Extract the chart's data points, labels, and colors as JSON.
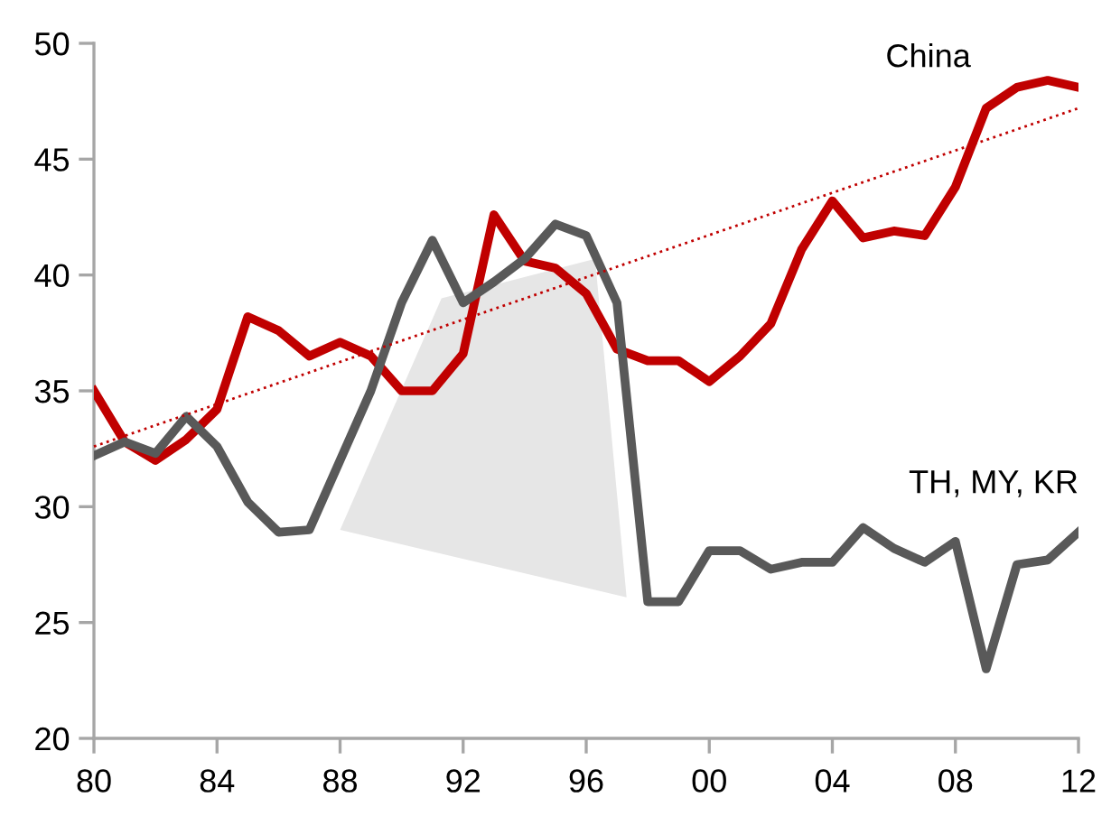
{
  "chart_data": {
    "type": "line",
    "x": [
      1980,
      1981,
      1982,
      1983,
      1984,
      1985,
      1986,
      1987,
      1988,
      1989,
      1990,
      1991,
      1992,
      1993,
      1994,
      1995,
      1996,
      1997,
      1998,
      1999,
      2000,
      2001,
      2002,
      2003,
      2004,
      2005,
      2006,
      2007,
      2008,
      2009,
      2010,
      2011,
      2012
    ],
    "series": [
      {
        "name": "China",
        "color": "#c00000",
        "values": [
          35.0,
          32.8,
          32.0,
          32.9,
          34.2,
          38.2,
          37.6,
          36.5,
          37.1,
          36.5,
          35.0,
          35.0,
          36.6,
          42.6,
          40.6,
          40.3,
          39.2,
          36.8,
          36.3,
          36.3,
          35.4,
          36.5,
          37.9,
          41.1,
          43.2,
          41.6,
          41.9,
          41.7,
          43.8,
          47.2,
          48.1,
          48.4,
          48.1
        ]
      },
      {
        "name": "TH, MY, KR",
        "color": "#595959",
        "values": [
          32.2,
          32.8,
          32.3,
          33.9,
          32.6,
          30.2,
          28.9,
          29.0,
          32.0,
          35.0,
          38.8,
          41.5,
          38.8,
          39.7,
          40.7,
          42.2,
          41.7,
          38.8,
          25.9,
          25.9,
          28.1,
          28.1,
          27.3,
          27.6,
          27.6,
          29.1,
          28.2,
          27.6,
          28.5,
          23.0,
          27.5,
          27.7,
          28.9
        ]
      },
      {
        "type": "line",
        "color": "#c00000",
        "line_style": "dotted",
        "x": [
          1980,
          2012
        ],
        "values": [
          32.6,
          47.2
        ]
      }
    ],
    "xlim": [
      1980,
      2012
    ],
    "xticks": [
      {
        "value": 1980,
        "label": "80"
      },
      {
        "value": 1984,
        "label": "84"
      },
      {
        "value": 1988,
        "label": "88"
      },
      {
        "value": 1992,
        "label": "92"
      },
      {
        "value": 1996,
        "label": "96"
      },
      {
        "value": 2000,
        "label": "00"
      },
      {
        "value": 2004,
        "label": "04"
      },
      {
        "value": 2008,
        "label": "08"
      },
      {
        "value": 2012,
        "label": "12"
      }
    ],
    "ylim": [
      20,
      50
    ],
    "yticks": [
      20,
      25,
      30,
      35,
      40,
      45,
      50
    ],
    "grid": false,
    "legend": false,
    "marker": "none",
    "line_style": "solid"
  }
}
